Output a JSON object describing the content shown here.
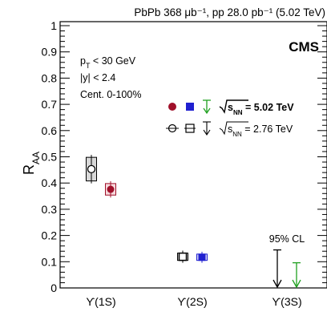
{
  "chart_data": {
    "type": "scatter",
    "top_label": "PbPb 368 μb⁻¹, pp 28.0 pb⁻¹ (5.02 TeV)",
    "experiment": "CMS",
    "cuts": [
      "p_T < 30 GeV",
      "|y| < 2.4",
      "Cent. 0-100%"
    ],
    "ylabel": "R_AA",
    "ylim": [
      0,
      1
    ],
    "yticks": [
      0,
      0.1,
      0.2,
      0.3,
      0.4,
      0.5,
      0.6,
      0.7,
      0.8,
      0.9,
      1
    ],
    "categories": [
      "ϒ(1S)",
      "ϒ(2S)",
      "ϒ(3S)"
    ],
    "legend": {
      "entries": [
        {
          "label": "√sNN = 5.02 TeV",
          "bold": true,
          "color": "#a0102a",
          "color2": "#2020d0",
          "color3": "#20a020"
        },
        {
          "label": "√sNN = 2.76 TeV",
          "bold": false,
          "color": "#000000"
        }
      ]
    },
    "series": [
      {
        "name": "√sNN = 5.02 TeV",
        "points": [
          {
            "category": "ϒ(1S)",
            "value": 0.376,
            "syst": 0.022,
            "color": "#a0102a",
            "marker": "circle-filled"
          },
          {
            "category": "ϒ(2S)",
            "value": 0.117,
            "syst": 0.012,
            "color": "#2020d0",
            "marker": "square-filled"
          }
        ],
        "upper_limits": [
          {
            "category": "ϒ(3S)",
            "value": 0.096,
            "color": "#20a020"
          }
        ]
      },
      {
        "name": "√sNN = 2.76 TeV",
        "points": [
          {
            "category": "ϒ(1S)",
            "value": 0.453,
            "syst": 0.045,
            "color": "#000000",
            "marker": "circle-open"
          },
          {
            "category": "ϒ(2S)",
            "value": 0.119,
            "syst": 0.014,
            "color": "#000000",
            "marker": "square-open"
          }
        ],
        "upper_limits": [
          {
            "category": "ϒ(3S)",
            "value": 0.145,
            "color": "#000000"
          }
        ]
      }
    ],
    "limit_label": "95% CL"
  }
}
